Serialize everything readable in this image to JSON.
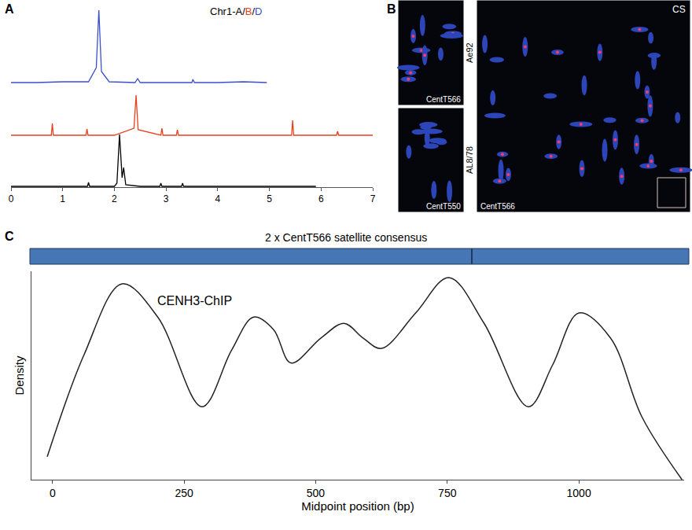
{
  "chart_data": [
    {
      "type": "line",
      "title": "Chr1-A/B/D",
      "xlim": [
        0,
        7
      ],
      "xticks": [
        0,
        1,
        2,
        3,
        4,
        5,
        6,
        7
      ],
      "ylim": [
        0,
        100
      ],
      "tick_labels": "x",
      "grid": false,
      "series": [
        {
          "name": "Chr1-A",
          "color": "#000000",
          "line_style": "solid",
          "x": [
            0,
            0.5,
            1.0,
            1.48,
            1.5,
            1.52,
            2.0,
            2.05,
            2.1,
            2.15,
            2.18,
            2.22,
            2.5,
            2.88,
            2.9,
            2.92,
            3.3,
            3.32,
            3.34,
            4.0,
            5.0,
            5.9
          ],
          "values": [
            1,
            1,
            1,
            1,
            6,
            1,
            1,
            5,
            67,
            12,
            25,
            3,
            1,
            1,
            5,
            1,
            1,
            5,
            1,
            1,
            1,
            1
          ]
        },
        {
          "name": "B",
          "color": "#e8401c",
          "line_style": "solid",
          "x": [
            0,
            0.78,
            0.8,
            0.82,
            1.2,
            1.45,
            1.47,
            1.49,
            2.0,
            2.38,
            2.42,
            2.46,
            2.9,
            2.92,
            2.94,
            3.2,
            3.22,
            3.24,
            4.0,
            5.0,
            5.43,
            5.45,
            5.47,
            6.0,
            6.3,
            6.32,
            6.34,
            7.0
          ],
          "values": [
            1,
            1,
            16,
            1,
            1,
            1,
            9,
            1,
            1,
            10,
            52,
            8,
            1,
            10,
            1,
            1,
            8,
            1,
            1,
            1,
            1,
            20,
            1,
            1,
            1,
            6,
            1,
            1
          ]
        },
        {
          "name": "D",
          "color": "#3a4fd0",
          "line_style": "solid",
          "x": [
            0,
            0.5,
            1.0,
            1.5,
            1.65,
            1.7,
            1.75,
            1.9,
            2.4,
            2.45,
            2.5,
            3.0,
            3.5,
            3.52,
            3.55,
            4.0,
            4.5,
            4.95
          ],
          "values": [
            1,
            1,
            2,
            2,
            20,
            93,
            15,
            2,
            1,
            6,
            1,
            1,
            1,
            5,
            1,
            1,
            2,
            1
          ]
        }
      ]
    },
    {
      "type": "line",
      "title": "CENH3-ChIP",
      "subtitle": "2 x CentT566 satellite consensus",
      "x_label": "Midpoint position (bp)",
      "y_label": "Density",
      "xlim": [
        -40,
        1200
      ],
      "xticks": [
        0,
        250,
        500,
        750,
        1000
      ],
      "ylim": [
        0,
        100
      ],
      "tick_labels": "x",
      "grid": false,
      "series": [
        {
          "color": "#222222",
          "line_style": "solid",
          "x": [
            -10,
            60,
            132,
            200,
            284,
            340,
            382,
            420,
            453,
            510,
            554,
            590,
            625,
            690,
            753,
            820,
            904,
            950,
            1000,
            1060,
            1120,
            1196
          ],
          "values": [
            11,
            60,
            94,
            78,
            35,
            62,
            78,
            72,
            56,
            68,
            75,
            68,
            63,
            80,
            97,
            75,
            35,
            55,
            80,
            68,
            30,
            0
          ]
        }
      ]
    }
  ],
  "panel_letters": [
    "A",
    "B",
    "C"
  ],
  "image_panel": {
    "row_labels": [
      "Ae92",
      "AL8/78"
    ],
    "probe_labels": [
      "CentT566",
      "CentT550",
      "CentT566"
    ],
    "sample_label": "CS"
  }
}
